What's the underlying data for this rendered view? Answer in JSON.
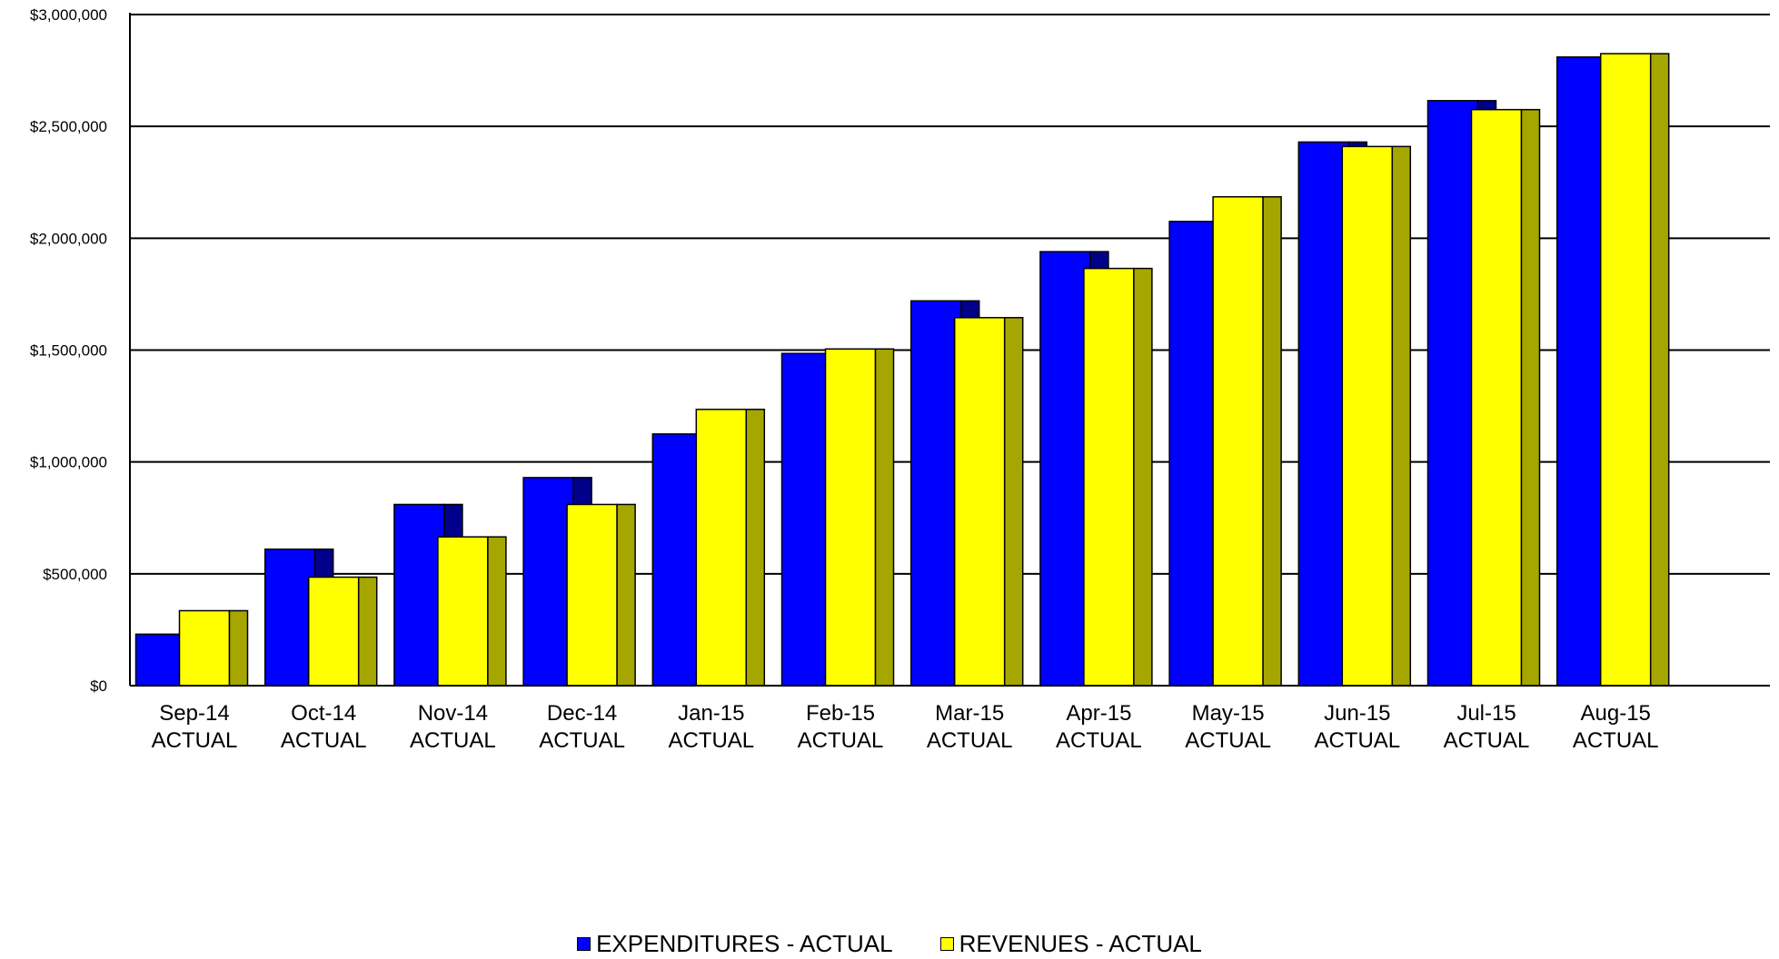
{
  "chart_data": {
    "type": "bar",
    "categories": [
      [
        "Sep-14",
        "ACTUAL"
      ],
      [
        "Oct-14",
        "ACTUAL"
      ],
      [
        "Nov-14",
        "ACTUAL"
      ],
      [
        "Dec-14",
        "ACTUAL"
      ],
      [
        "Jan-15",
        "ACTUAL"
      ],
      [
        "Feb-15",
        "ACTUAL"
      ],
      [
        "Mar-15",
        "ACTUAL"
      ],
      [
        "Apr-15",
        "ACTUAL"
      ],
      [
        "May-15",
        "ACTUAL"
      ],
      [
        "Jun-15",
        "ACTUAL"
      ],
      [
        "Jul-15",
        "ACTUAL"
      ],
      [
        "Aug-15",
        "ACTUAL"
      ]
    ],
    "series": [
      {
        "name": "EXPENDITURES - ACTUAL",
        "color": "#0000ff",
        "side_color": "#00008b",
        "values": [
          230000,
          610000,
          810000,
          930000,
          1125000,
          1485000,
          1720000,
          1940000,
          2075000,
          2430000,
          2615000,
          2810000
        ]
      },
      {
        "name": "REVENUES - ACTUAL",
        "color": "#ffff00",
        "side_color": "#a6a600",
        "values": [
          335000,
          485000,
          665000,
          810000,
          1235000,
          1505000,
          1645000,
          1865000,
          2185000,
          2410000,
          2575000,
          2825000
        ]
      }
    ],
    "y_ticks": [
      "$0",
      "$500,000",
      "$1,000,000",
      "$1,500,000",
      "$2,000,000",
      "$2,500,000",
      "$3,000,000"
    ],
    "ylim": [
      0,
      3000000
    ],
    "grid": true,
    "legend_position": "bottom-center",
    "title": "",
    "xlabel": "",
    "ylabel": ""
  }
}
